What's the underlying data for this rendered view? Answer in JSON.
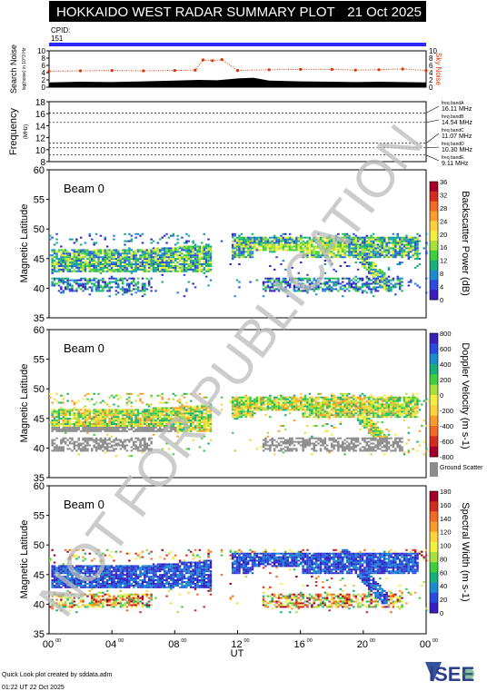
{
  "header": {
    "title": "HOKKAIDO WEST RADAR SUMMARY PLOT",
    "date": "21 Oct 2025",
    "cpid_label": "CPID:",
    "cpid_value": "151"
  },
  "footer": {
    "credit": "Quick Look plot created by sddata.adm",
    "timestamp": "01:22 UT 22 Oct 2025",
    "logo_text": "ISEE"
  },
  "watermark": "NOT FOR PUBLICATION",
  "colors": {
    "cpid_bar": "#2a2aff",
    "noise_red": "#dd3300",
    "ground_scatter": "#8c8c8c",
    "watermark": "#bbbbbb"
  },
  "chart_data": [
    {
      "id": "noise",
      "type": "area",
      "ylabel": "Search Noise",
      "ylabel_small": "log(noise) in 10^3 Hz",
      "right_label": "Sky Noise",
      "ylim": [
        0,
        10
      ],
      "yticks": [
        "10",
        "8",
        "6",
        "4",
        "2",
        "0"
      ],
      "series": [
        {
          "name": "Search Noise",
          "x": [
            0,
            2,
            4,
            6,
            8,
            9.5,
            10.7,
            12,
            13,
            14,
            16,
            18,
            19.5,
            21,
            22.5,
            24
          ],
          "values": [
            1.3,
            1.5,
            1.4,
            1.6,
            1.8,
            2.0,
            1.9,
            2.4,
            2.6,
            1.8,
            1.6,
            1.5,
            1.4,
            1.5,
            1.4,
            1.3
          ]
        },
        {
          "name": "Sky Noise",
          "x": [
            0,
            2,
            4,
            6,
            8,
            9.3,
            9.8,
            10.4,
            11.0,
            12,
            14,
            16,
            18,
            19.5,
            21,
            22.5,
            24
          ],
          "values": [
            4.4,
            4.5,
            4.6,
            4.5,
            4.6,
            4.7,
            7.5,
            7.3,
            7.6,
            4.6,
            4.8,
            4.9,
            4.9,
            4.7,
            4.8,
            5.0,
            4.6
          ]
        }
      ]
    },
    {
      "id": "frequency",
      "type": "line",
      "ylabel": "Frequency",
      "ylabel_unit": "(MHz)",
      "ylim": [
        8,
        18
      ],
      "yticks": [
        "18",
        "16",
        "14",
        "12",
        "10",
        "8"
      ],
      "bands": [
        {
          "label": "freq bandA",
          "value": "16.11 MHz",
          "mhz": 16.11
        },
        {
          "label": "freq bandB",
          "value": "14.54 MHz",
          "mhz": 14.54
        },
        {
          "label": "freq bandC",
          "value": "11.07 MHz",
          "mhz": 11.07
        },
        {
          "label": "freq bandD",
          "value": "10.30 MHz",
          "mhz": 10.3
        },
        {
          "label": "freq bandE",
          "value": "9.11 MHz",
          "mhz": 9.11
        }
      ]
    },
    {
      "id": "power",
      "type": "heatmap",
      "beam_label": "Beam  0",
      "ylabel": "Magnetic Latitude",
      "ylim": [
        35,
        60
      ],
      "yticks": [
        "60",
        "55",
        "50",
        "45",
        "40",
        "35"
      ],
      "colorbar_label": "Backscatter Power (dB)",
      "colorbar_ticks": [
        "36",
        "32",
        "28",
        "24",
        "20",
        "16",
        "12",
        "8",
        "4",
        "0"
      ],
      "colorbar_colors": [
        "#a4002a",
        "#d42d1e",
        "#f26a24",
        "#fb9b2c",
        "#fdd23a",
        "#f4ee3e",
        "#a8e03c",
        "#3ecf3e",
        "#17b07a",
        "#1a8cd0",
        "#2a4bdf",
        "#3a1fbf"
      ]
    },
    {
      "id": "velocity",
      "type": "heatmap",
      "beam_label": "Beam  0",
      "ylabel": "Magnetic Latitude",
      "ylim": [
        35,
        60
      ],
      "yticks": [
        "60",
        "55",
        "50",
        "45",
        "40",
        "35"
      ],
      "colorbar_label": "Doppler Velocity (m s-1)",
      "colorbar_ticks": [
        "800",
        "600",
        "400",
        "200",
        "0",
        "-200",
        "-400",
        "-600",
        "-800"
      ],
      "colorbar_colors": [
        "#3a1fbf",
        "#2a4bdf",
        "#1a8cd0",
        "#17b07a",
        "#3ecf3e",
        "#a8e03c",
        "#f4ee3e",
        "#fdd23a",
        "#fb9b2c",
        "#f26a24",
        "#d42d1e",
        "#a4002a"
      ],
      "ground_scatter_label": "Ground Scatter"
    },
    {
      "id": "width",
      "type": "heatmap",
      "beam_label": "Beam  0",
      "ylabel": "Magnetic Latitude",
      "ylim": [
        35,
        60
      ],
      "yticks": [
        "60",
        "55",
        "50",
        "45",
        "40",
        "35"
      ],
      "colorbar_label": "Spectral Width (m s-1)",
      "colorbar_ticks": [
        "180",
        "160",
        "140",
        "120",
        "100",
        "80",
        "60",
        "40",
        "20",
        "0"
      ],
      "colorbar_colors": [
        "#a4002a",
        "#d42d1e",
        "#f26a24",
        "#fb9b2c",
        "#fdd23a",
        "#f4ee3e",
        "#a8e03c",
        "#3ecf3e",
        "#17b07a",
        "#1a8cd0",
        "#2a4bdf",
        "#3a1fbf"
      ],
      "xlabel": "UT",
      "xticks": [
        "00",
        "04",
        "08",
        "12",
        "16",
        "20",
        "00"
      ],
      "tick_suffix": "00"
    }
  ]
}
